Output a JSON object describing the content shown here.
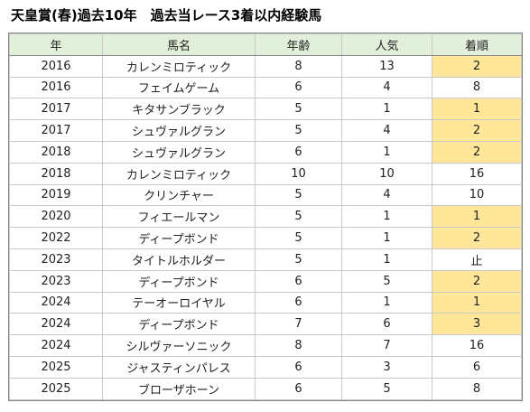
{
  "title": "天皇賞(春)過去10年　過去当レース3着以内経験馬",
  "table": {
    "header": [
      "年",
      "馬名",
      "年齢",
      "人気",
      "着順"
    ],
    "rows": [
      [
        2016,
        "カレンミロティック",
        8,
        13,
        2
      ],
      [
        2016,
        "フェイムゲーム",
        6,
        4,
        8
      ],
      [
        2017,
        "キタサンブラック",
        5,
        1,
        1
      ],
      [
        2017,
        "シュヴァルグラン",
        5,
        4,
        2
      ],
      [
        2018,
        "シュヴァルグラン",
        6,
        1,
        2
      ],
      [
        2018,
        "カレンミロティック",
        10,
        10,
        16
      ],
      [
        2019,
        "クリンチャー",
        5,
        4,
        10
      ],
      [
        2020,
        "フィエールマン",
        5,
        1,
        1
      ],
      [
        2022,
        "ディープボンド",
        5,
        1,
        2
      ],
      [
        2023,
        "タイトルホルダー",
        5,
        1,
        "止"
      ],
      [
        2023,
        "ディープボンド",
        6,
        5,
        2
      ],
      [
        2024,
        "テーオーロイヤル",
        6,
        1,
        1
      ],
      [
        2024,
        "ディープボンド",
        7,
        6,
        3
      ],
      [
        2024,
        "シルヴァーソニック",
        8,
        7,
        16
      ],
      [
        2025,
        "ジャスティンパレス",
        6,
        3,
        6
      ],
      [
        2025,
        "ブローザホーン",
        6,
        5,
        8
      ]
    ]
  }
}
